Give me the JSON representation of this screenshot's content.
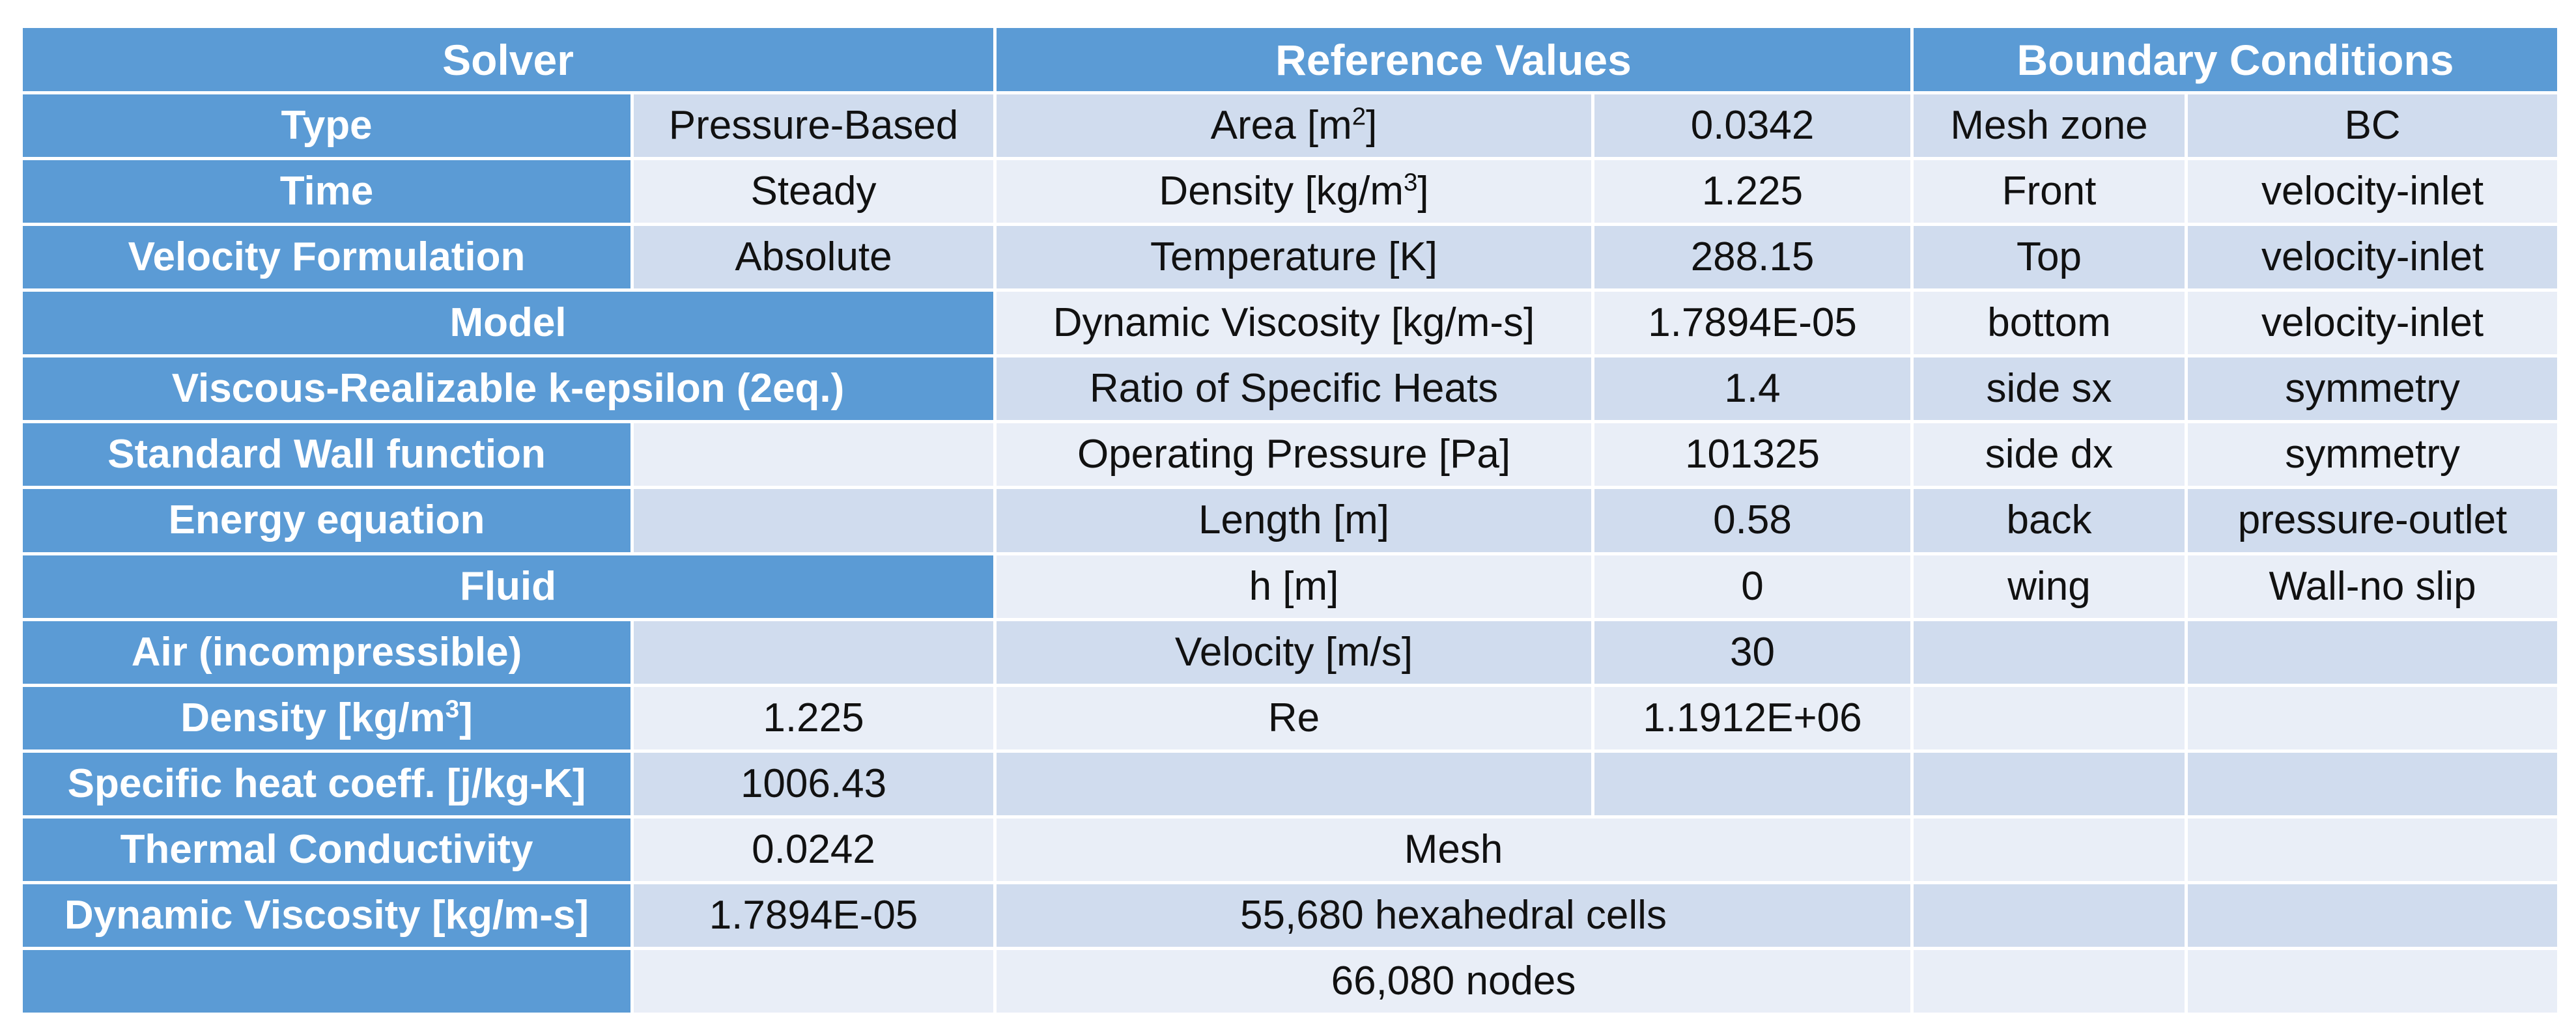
{
  "headers": {
    "solver": "Solver",
    "reference": "Reference Values",
    "boundary": "Boundary Conditions"
  },
  "solver": {
    "type_label": "Type",
    "type_value": "Pressure-Based",
    "time_label": "Time",
    "time_value": "Steady",
    "velocity_formulation_label": "Velocity Formulation",
    "velocity_formulation_value": "Absolute",
    "model_header": "Model",
    "viscous_model": "Viscous-Realizable k-epsilon (2eq.)",
    "wall_function": "Standard Wall function",
    "energy_equation": "Energy equation",
    "fluid_header": "Fluid",
    "fluid_name": "Air (incompressible)",
    "density_label": "Density [kg/m",
    "density_sup": "3",
    "density_label_end": "]",
    "density_value": "1.225",
    "specific_heat_label": "Specific heat coeff. [j/kg-K]",
    "specific_heat_value": "1006.43",
    "thermal_conductivity_label": "Thermal Conductivity",
    "thermal_conductivity_value": "0.0242",
    "dynamic_viscosity_label": "Dynamic Viscosity [kg/m-s]",
    "dynamic_viscosity_value": "1.7894E-05"
  },
  "reference": {
    "area_label": "Area [m",
    "area_sup": "2",
    "area_label_end": "]",
    "area_value": "0.0342",
    "density_label": "Density [kg/m",
    "density_sup": "3",
    "density_label_end": "]",
    "density_value": "1.225",
    "temperature_label": "Temperature [K]",
    "temperature_value": "288.15",
    "dynamic_viscosity_label": "Dynamic Viscosity [kg/m-s]",
    "dynamic_viscosity_value": "1.7894E-05",
    "ratio_heats_label": "Ratio of Specific Heats",
    "ratio_heats_value": "1.4",
    "operating_pressure_label": "Operating Pressure [Pa]",
    "operating_pressure_value": "101325",
    "length_label": "Length [m]",
    "length_value": "0.58",
    "h_label": "h [m]",
    "h_value": "0",
    "velocity_label": "Velocity [m/s]",
    "velocity_value": "30",
    "re_label": "Re",
    "re_value": "1.1912E+06"
  },
  "mesh": {
    "header": "Mesh",
    "cells": "55,680 hexahedral cells",
    "nodes": "66,080 nodes"
  },
  "boundary": {
    "col_zone": "Mesh zone",
    "col_bc": "BC",
    "rows": [
      {
        "zone": "Front",
        "bc": "velocity-inlet"
      },
      {
        "zone": "Top",
        "bc": "velocity-inlet"
      },
      {
        "zone": "bottom",
        "bc": "velocity-inlet"
      },
      {
        "zone": "side sx",
        "bc": "symmetry"
      },
      {
        "zone": "side dx",
        "bc": "symmetry"
      },
      {
        "zone": "back",
        "bc": "pressure-outlet"
      },
      {
        "zone": "wing",
        "bc": "Wall-no slip"
      }
    ]
  }
}
